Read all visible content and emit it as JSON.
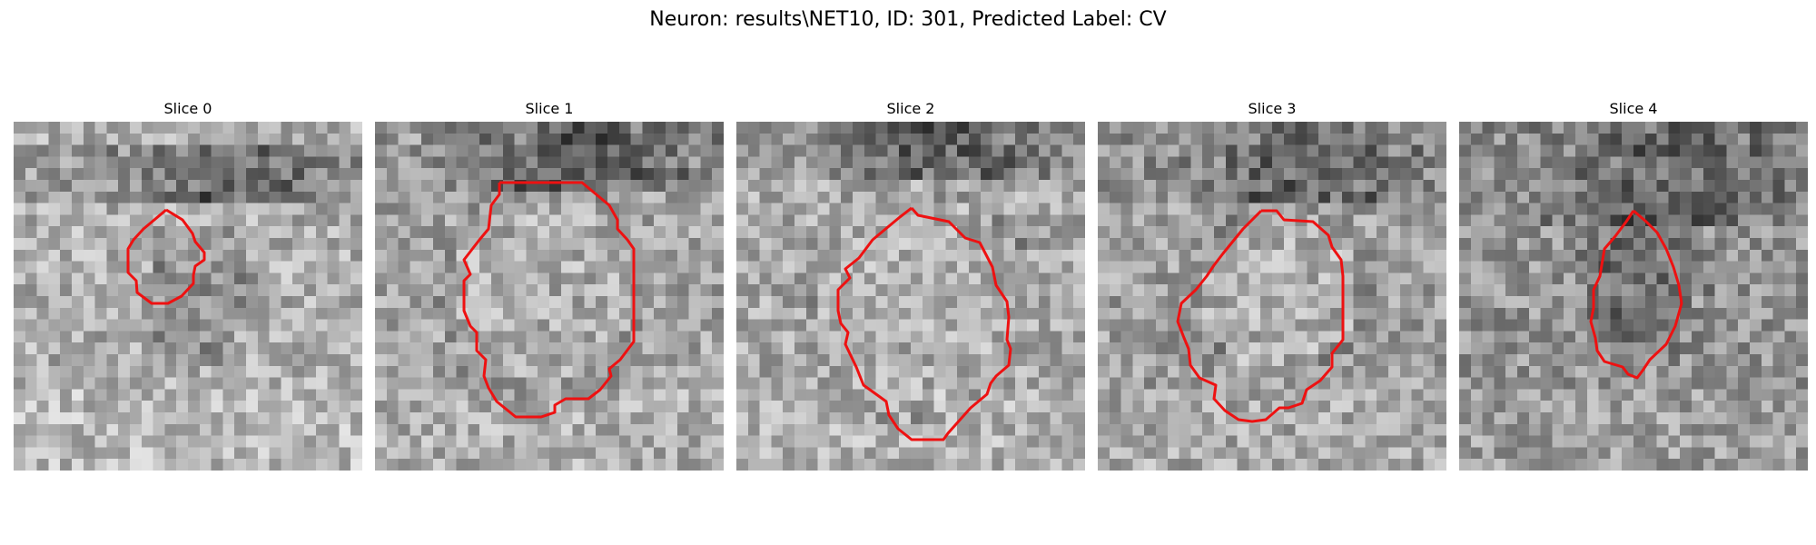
{
  "figure": {
    "title": "Neuron: results\\NET10, ID: 301, Predicted Label: CV",
    "contour_color": "#ee1111"
  },
  "panels": [
    {
      "title": "Slice 0",
      "image": "grayscale-microscopy-slice",
      "contour": "red-roi-outline"
    },
    {
      "title": "Slice 1",
      "image": "grayscale-microscopy-slice",
      "contour": "red-roi-outline"
    },
    {
      "title": "Slice 2",
      "image": "grayscale-microscopy-slice",
      "contour": "red-roi-outline"
    },
    {
      "title": "Slice 3",
      "image": "grayscale-microscopy-slice",
      "contour": "red-roi-outline"
    },
    {
      "title": "Slice 4",
      "image": "grayscale-microscopy-slice",
      "contour": "red-roi-outline"
    }
  ]
}
